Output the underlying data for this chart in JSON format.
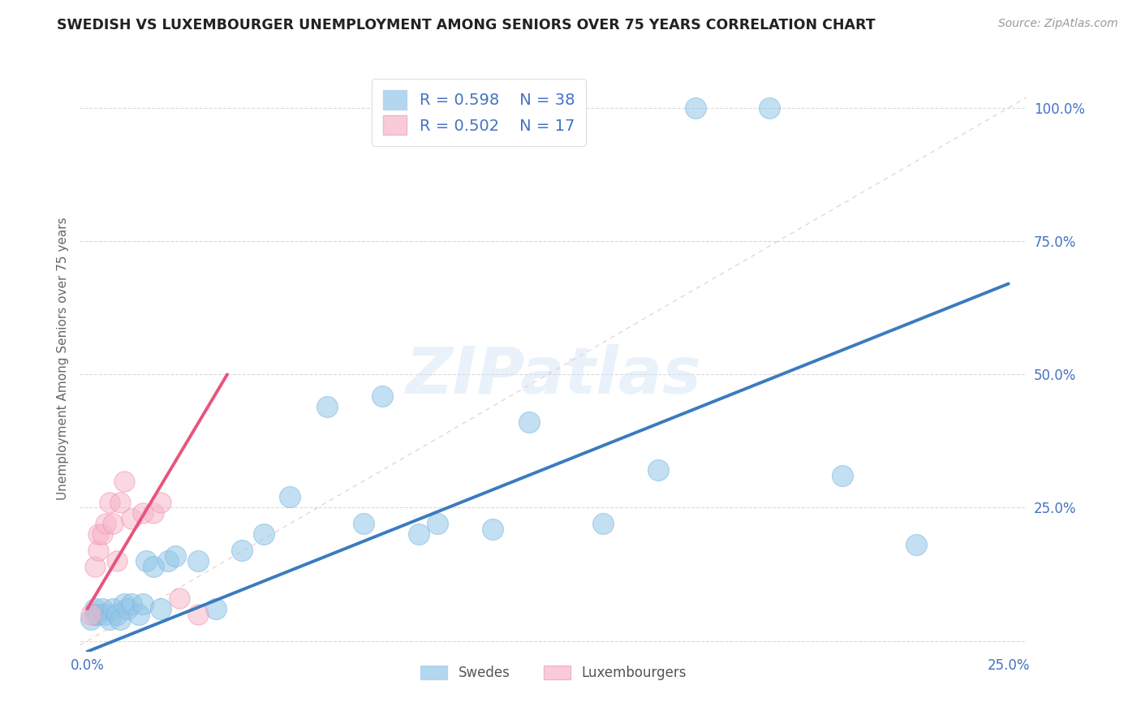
{
  "title": "SWEDISH VS LUXEMBOURGER UNEMPLOYMENT AMONG SENIORS OVER 75 YEARS CORRELATION CHART",
  "source": "Source: ZipAtlas.com",
  "ylabel": "Unemployment Among Seniors over 75 years",
  "xlim": [
    -0.002,
    0.255
  ],
  "ylim": [
    -0.02,
    1.08
  ],
  "x_ticks": [
    0.0,
    0.05,
    0.1,
    0.15,
    0.2,
    0.25
  ],
  "x_tick_labels": [
    "0.0%",
    "",
    "",
    "",
    "",
    "25.0%"
  ],
  "y_ticks": [
    0.0,
    0.25,
    0.5,
    0.75,
    1.0
  ],
  "y_tick_labels": [
    "",
    "25.0%",
    "50.0%",
    "75.0%",
    "100.0%"
  ],
  "blue_color": "#93c6e8",
  "pink_color": "#f7b6c9",
  "blue_line_color": "#3a7bbf",
  "pink_line_color": "#e8547a",
  "blue_r": "R = 0.598",
  "blue_n": "N = 38",
  "pink_r": "R = 0.502",
  "pink_n": "N = 17",
  "legend_label_blue": "Swedes",
  "legend_label_pink": "Luxembourgers",
  "swedes_x": [
    0.001,
    0.002,
    0.002,
    0.003,
    0.004,
    0.005,
    0.006,
    0.007,
    0.008,
    0.009,
    0.01,
    0.011,
    0.012,
    0.014,
    0.015,
    0.016,
    0.018,
    0.02,
    0.022,
    0.024,
    0.03,
    0.035,
    0.042,
    0.048,
    0.055,
    0.065,
    0.075,
    0.08,
    0.09,
    0.095,
    0.11,
    0.12,
    0.14,
    0.155,
    0.165,
    0.185,
    0.205,
    0.225
  ],
  "swedes_y": [
    0.04,
    0.05,
    0.06,
    0.05,
    0.06,
    0.05,
    0.04,
    0.06,
    0.05,
    0.04,
    0.07,
    0.06,
    0.07,
    0.05,
    0.07,
    0.15,
    0.14,
    0.06,
    0.15,
    0.16,
    0.15,
    0.06,
    0.17,
    0.2,
    0.27,
    0.44,
    0.22,
    0.46,
    0.2,
    0.22,
    0.21,
    0.41,
    0.22,
    0.32,
    1.0,
    1.0,
    0.31,
    0.18
  ],
  "luxembourgers_x": [
    0.001,
    0.002,
    0.003,
    0.003,
    0.004,
    0.005,
    0.006,
    0.007,
    0.008,
    0.009,
    0.01,
    0.012,
    0.015,
    0.018,
    0.02,
    0.025,
    0.03
  ],
  "luxembourgers_y": [
    0.05,
    0.14,
    0.17,
    0.2,
    0.2,
    0.22,
    0.26,
    0.22,
    0.15,
    0.26,
    0.3,
    0.23,
    0.24,
    0.24,
    0.26,
    0.08,
    0.05
  ],
  "blue_line_x0": 0.0,
  "blue_line_x1": 0.25,
  "blue_line_y0": -0.02,
  "blue_line_y1": 0.67,
  "pink_line_x0": 0.0,
  "pink_line_x1": 0.038,
  "pink_line_y0": 0.06,
  "pink_line_y1": 0.5,
  "diag_color": "#e8c0c0",
  "watermark": "ZIPatlas",
  "background_color": "#ffffff",
  "grid_color": "#d0d0d0"
}
